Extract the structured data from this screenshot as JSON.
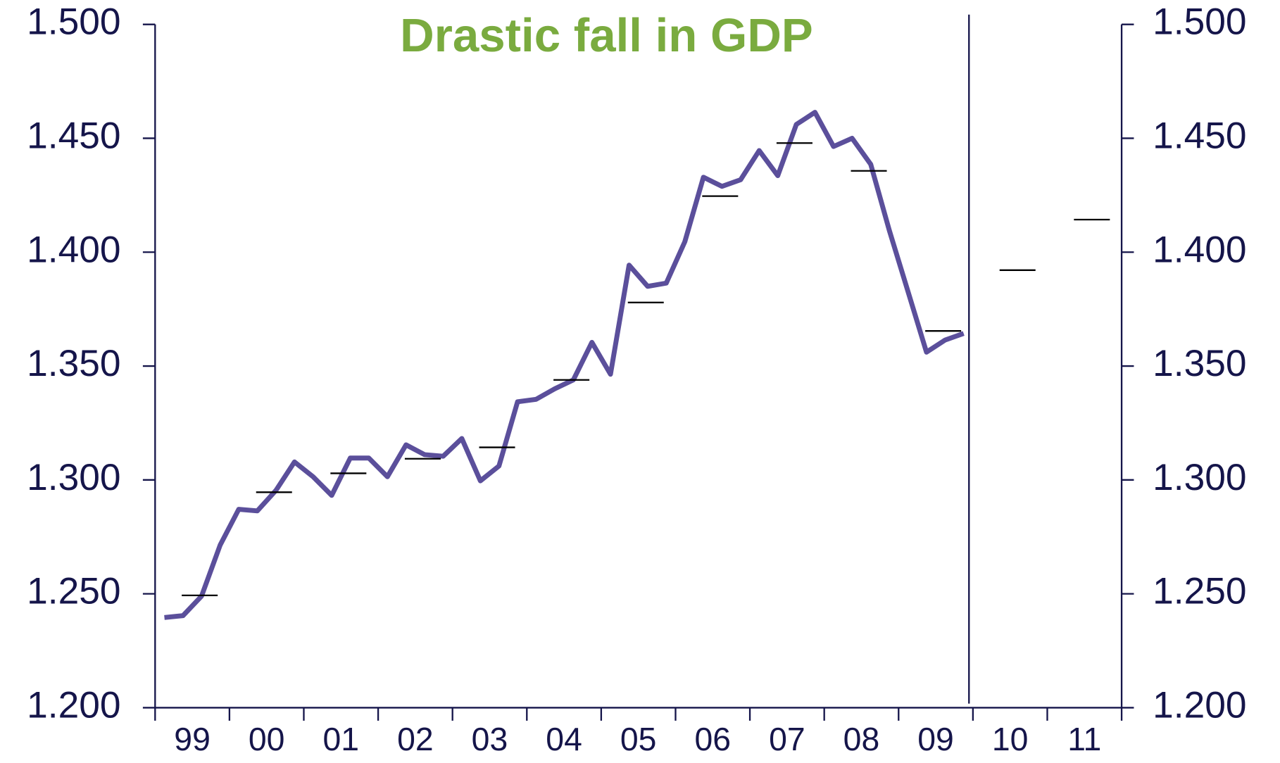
{
  "chart_data": {
    "type": "line",
    "title": "Drastic fall in GDP",
    "title_color": "#7aab3f",
    "categories": [
      "99",
      "00",
      "01",
      "02",
      "03",
      "04",
      "05",
      "06",
      "07",
      "08",
      "09",
      "10",
      "11"
    ],
    "series": [
      {
        "color": "#5b4f9b",
        "quarterly_values": [
          1.2396,
          1.2404,
          1.249,
          1.2714,
          1.2871,
          1.2864,
          1.2954,
          1.3079,
          1.3014,
          1.2932,
          1.3096,
          1.3096,
          1.3014,
          1.3154,
          1.3111,
          1.3104,
          1.3182,
          1.2996,
          1.3061,
          1.3343,
          1.3354,
          1.34,
          1.3439,
          1.3604,
          1.3464,
          1.3943,
          1.385,
          1.3864,
          1.4046,
          1.4329,
          1.4289,
          1.4318,
          1.4446,
          1.4336,
          1.4561,
          1.4614,
          1.4464,
          1.45,
          1.4386,
          1.4096,
          1.3829,
          1.3561,
          1.3614,
          1.3643
        ]
      },
      {
        "color": "#000000",
        "style": "dash",
        "values": [
          1.2493,
          1.2946,
          1.3029,
          1.3093,
          1.3143,
          1.3439,
          1.3779,
          1.4246,
          1.4479,
          1.4357,
          1.3654,
          1.3921,
          1.4143
        ]
      }
    ],
    "ylim": [
      1.2,
      1.5
    ],
    "yticks": [
      {
        "value": 1.2,
        "label": "1.200"
      },
      {
        "value": 1.25,
        "label": "1.250"
      },
      {
        "value": 1.3,
        "label": "1.300"
      },
      {
        "value": 1.35,
        "label": "1.350"
      },
      {
        "value": 1.4,
        "label": "1.400"
      },
      {
        "value": 1.45,
        "label": "1.450"
      },
      {
        "value": 1.5,
        "label": "1.500"
      }
    ],
    "y2lim": [
      1.2,
      1.5
    ],
    "y2ticks": [
      {
        "value": 1.2,
        "label": "1.200"
      },
      {
        "value": 1.25,
        "label": "1.250"
      },
      {
        "value": 1.3,
        "label": "1.300"
      },
      {
        "value": 1.35,
        "label": "1.350"
      },
      {
        "value": 1.4,
        "label": "1.400"
      },
      {
        "value": 1.45,
        "label": "1.450"
      },
      {
        "value": 1.5,
        "label": "1.500"
      }
    ]
  }
}
